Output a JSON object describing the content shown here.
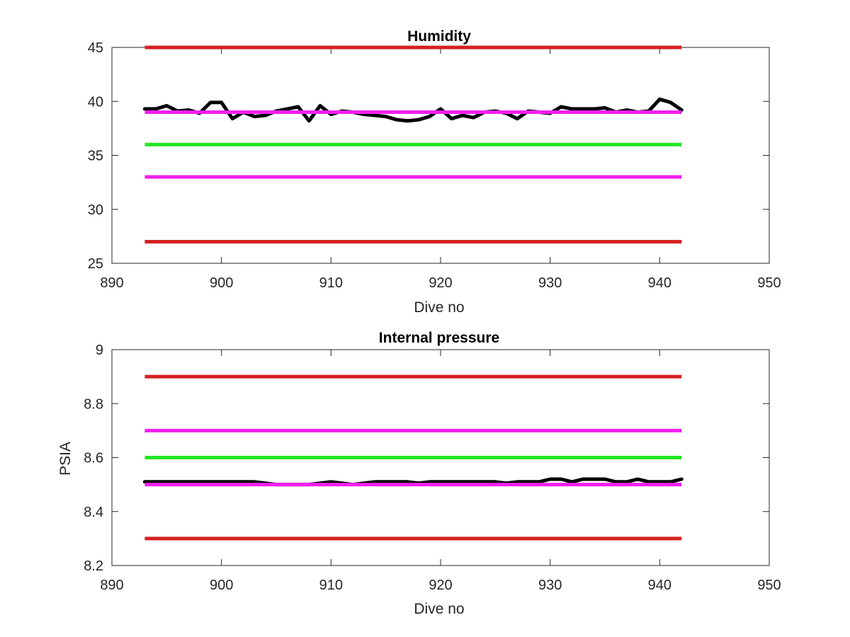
{
  "chart_data": [
    {
      "type": "line",
      "title": "Humidity",
      "xlabel": "Dive no",
      "ylabel": "",
      "xlim": [
        890,
        950
      ],
      "ylim": [
        25,
        45
      ],
      "xticks": [
        890,
        900,
        910,
        920,
        930,
        940,
        950
      ],
      "yticks": [
        25,
        30,
        35,
        40,
        45
      ],
      "x_tick_labels": [
        "890",
        "900",
        "910",
        "920",
        "930",
        "940",
        "950"
      ],
      "y_tick_labels": [
        "25",
        "30",
        "35",
        "40",
        "45"
      ],
      "grid": false,
      "reference_lines": [
        {
          "y": 45,
          "x_range": [
            893,
            942
          ],
          "color": "#d62020"
        },
        {
          "y": 27,
          "x_range": [
            893,
            942
          ],
          "color": "#d62020"
        },
        {
          "y": 39,
          "x_range": [
            893,
            942
          ],
          "color": "#f01ff0"
        },
        {
          "y": 33,
          "x_range": [
            893,
            942
          ],
          "color": "#f01ff0"
        },
        {
          "y": 36,
          "x_range": [
            893,
            942
          ],
          "color": "#22e622"
        }
      ],
      "series": [
        {
          "color": "#000000",
          "x": [
            893,
            894,
            895,
            896,
            897,
            898,
            899,
            900,
            901,
            902,
            903,
            904,
            905,
            906,
            907,
            908,
            909,
            910,
            911,
            912,
            913,
            914,
            915,
            916,
            917,
            918,
            919,
            920,
            921,
            922,
            923,
            924,
            925,
            926,
            927,
            928,
            929,
            930,
            931,
            932,
            933,
            934,
            935,
            936,
            937,
            938,
            939,
            940,
            941,
            942
          ],
          "values": [
            39.3,
            39.3,
            39.6,
            39.1,
            39.2,
            38.9,
            39.9,
            39.9,
            38.4,
            39.0,
            38.6,
            38.7,
            39.1,
            39.3,
            39.5,
            38.2,
            39.6,
            38.8,
            39.1,
            39.0,
            38.8,
            38.7,
            38.6,
            38.3,
            38.2,
            38.3,
            38.6,
            39.3,
            38.4,
            38.7,
            38.5,
            39.0,
            39.1,
            38.9,
            38.4,
            39.1,
            39.0,
            38.9,
            39.5,
            39.3,
            39.3,
            39.3,
            39.4,
            39.0,
            39.2,
            39.0,
            39.1,
            40.2,
            39.9,
            39.2
          ]
        }
      ]
    },
    {
      "type": "line",
      "title": "Internal pressure",
      "xlabel": "Dive no",
      "ylabel": "PSIA",
      "xlim": [
        890,
        950
      ],
      "ylim": [
        8.2,
        9.0
      ],
      "xticks": [
        890,
        900,
        910,
        920,
        930,
        940,
        950
      ],
      "yticks": [
        8.2,
        8.4,
        8.6,
        8.8,
        9.0
      ],
      "x_tick_labels": [
        "890",
        "900",
        "910",
        "920",
        "930",
        "940",
        "950"
      ],
      "y_tick_labels": [
        "8.2",
        "8.4",
        "8.6",
        "8.8",
        "9"
      ],
      "grid": false,
      "reference_lines": [
        {
          "y": 8.9,
          "x_range": [
            893,
            942
          ],
          "color": "#d62020"
        },
        {
          "y": 8.3,
          "x_range": [
            893,
            942
          ],
          "color": "#d62020"
        },
        {
          "y": 8.7,
          "x_range": [
            893,
            942
          ],
          "color": "#f01ff0"
        },
        {
          "y": 8.5,
          "x_range": [
            893,
            942
          ],
          "color": "#f01ff0"
        },
        {
          "y": 8.6,
          "x_range": [
            893,
            942
          ],
          "color": "#22e622"
        }
      ],
      "series": [
        {
          "color": "#000000",
          "x": [
            893,
            894,
            895,
            896,
            897,
            898,
            899,
            900,
            901,
            902,
            903,
            904,
            905,
            906,
            907,
            908,
            909,
            910,
            911,
            912,
            913,
            914,
            915,
            916,
            917,
            918,
            919,
            920,
            921,
            922,
            923,
            924,
            925,
            926,
            927,
            928,
            929,
            930,
            931,
            932,
            933,
            934,
            935,
            936,
            937,
            938,
            939,
            940,
            941,
            942
          ],
          "values": [
            8.51,
            8.51,
            8.51,
            8.51,
            8.51,
            8.51,
            8.51,
            8.51,
            8.51,
            8.51,
            8.51,
            8.505,
            8.5,
            8.5,
            8.5,
            8.5,
            8.505,
            8.51,
            8.505,
            8.5,
            8.505,
            8.51,
            8.51,
            8.51,
            8.51,
            8.505,
            8.51,
            8.51,
            8.51,
            8.51,
            8.51,
            8.51,
            8.51,
            8.505,
            8.51,
            8.51,
            8.51,
            8.52,
            8.52,
            8.51,
            8.52,
            8.52,
            8.52,
            8.51,
            8.51,
            8.52,
            8.51,
            8.51,
            8.51,
            8.52
          ]
        }
      ]
    }
  ]
}
